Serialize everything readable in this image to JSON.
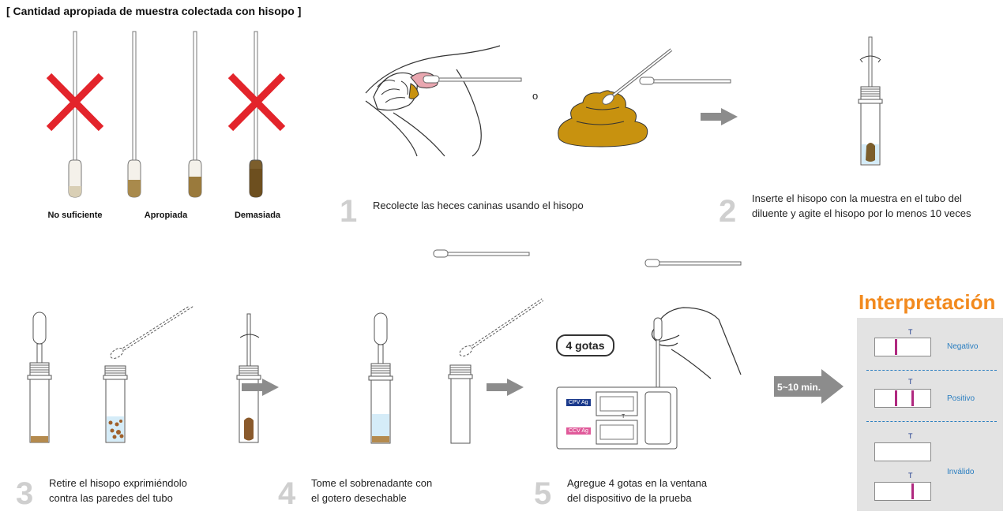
{
  "title": "[ Cantidad apropiada de muestra colectada con hisopo ]",
  "swabs": {
    "no_suficiente": "No suficiente",
    "apropiada": "Apropiada",
    "demasiada": "Demasiada"
  },
  "connector_o": "o",
  "steps": [
    {
      "num": "1",
      "text": "Recolecte las heces caninas usando el hisopo"
    },
    {
      "num": "2",
      "text_line1": "Inserte el hisopo con la muestra en el tubo del",
      "text_line2": "diluente y agite el hisopo por lo menos 10 veces"
    },
    {
      "num": "3",
      "text_line1": "Retire el hisopo exprimiéndolo",
      "text_line2": "contra las paredes del tubo"
    },
    {
      "num": "4",
      "text_line1": "Tome el sobrenadante con",
      "text_line2": "el gotero desechable"
    },
    {
      "num": "5",
      "text_line1": "Agregue 4 gotas en la ventana",
      "text_line2": "del dispositivo de la prueba"
    }
  ],
  "drops_label": "4 gotas",
  "device": {
    "cpv": "CPV Ag",
    "ccv": "CCV Ag",
    "t": "T"
  },
  "time_label": "5~10 min.",
  "interpretation": {
    "title": "Interpretación",
    "t": "T",
    "negativo": "Negativo",
    "positivo": "Positivo",
    "invalido": "Inválido"
  },
  "colors": {
    "accent": "#f28a1e",
    "line": "#b0287f",
    "result_text": "#2a7ec0",
    "feces": "#c8920f",
    "arrow": "#8c8c8c",
    "cross": "#e3242b"
  }
}
